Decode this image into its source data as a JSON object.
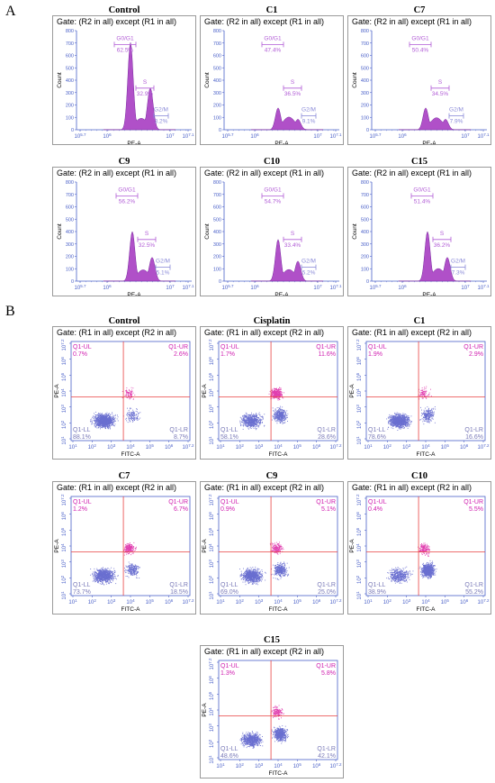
{
  "section_labels": {
    "a": "A",
    "b": "B"
  },
  "histogram": {
    "gate": "Gate: (R2 in all) except (R1 in all)",
    "ylabel": "Count",
    "xlabel": "PE-A",
    "region_labels": [
      "G0/G1",
      "S",
      "G2/M"
    ],
    "yticks": [
      "0",
      "100",
      "200",
      "300",
      "400",
      "500",
      "600",
      "700",
      "800"
    ],
    "xticks": [
      "10^5.7",
      "10^6",
      "10^7",
      "10^7.1"
    ],
    "samples": [
      {
        "name": "Control",
        "g0g1": "62.5%",
        "s": "32.9%",
        "g2m": "3.2%"
      },
      {
        "name": "C1",
        "g0g1": "47.4%",
        "s": "36.5%",
        "g2m": "9.1%"
      },
      {
        "name": "C7",
        "g0g1": "50.4%",
        "s": "34.5%",
        "g2m": "7.9%"
      },
      {
        "name": "C9",
        "g0g1": "56.2%",
        "s": "32.5%",
        "g2m": "5.1%"
      },
      {
        "name": "C10",
        "g0g1": "54.7%",
        "s": "33.4%",
        "g2m": "5.2%"
      },
      {
        "name": "C15",
        "g0g1": "51.4%",
        "s": "36.2%",
        "g2m": "7.3%"
      }
    ]
  },
  "scatter": {
    "gate": "Gate: (R1 in all) except (R2 in all)",
    "ylabel": "PE-A",
    "xlabel": "FITC-A",
    "quadrant_labels": [
      "Q1-UL",
      "Q1-UR",
      "Q1-LL",
      "Q1-LR"
    ],
    "xticks": [
      "10^1",
      "10^2",
      "10^3",
      "10^4",
      "10^5",
      "10^6",
      "10^7.2"
    ],
    "yticks": [
      "10^1",
      "10^2",
      "10^3",
      "10^4",
      "10^5",
      "10^6",
      "10^7.2"
    ],
    "samples": [
      {
        "name": "Control",
        "ul": "0.7%",
        "ur": "2.6%",
        "ll": "88.1%",
        "lr": "8.7%"
      },
      {
        "name": "Cisplatin",
        "ul": "1.7%",
        "ur": "11.6%",
        "ll": "58.1%",
        "lr": "28.6%"
      },
      {
        "name": "C1",
        "ul": "1.9%",
        "ur": "2.9%",
        "ll": "78.6%",
        "lr": "16.6%"
      },
      {
        "name": "C7",
        "ul": "1.2%",
        "ur": "6.7%",
        "ll": "73.7%",
        "lr": "18.5%"
      },
      {
        "name": "C9",
        "ul": "0.9%",
        "ur": "5.1%",
        "ll": "69.0%",
        "lr": "25.0%"
      },
      {
        "name": "C10",
        "ul": "0.4%",
        "ur": "5.5%",
        "ll": "38.9%",
        "lr": "55.2%"
      },
      {
        "name": "C15",
        "ul": "1.3%",
        "ur": "5.8%",
        "ll": "48.6%",
        "lr": "42.1%"
      }
    ]
  },
  "colors": {
    "peak": "#b050c8",
    "peak_dark": "#7a2aa0",
    "region": "#b15cd6",
    "dot_blue": "#6a6fd0",
    "dot_pink": "#e040b0",
    "quad_line": "#e84040",
    "axis": "#4a60c8",
    "quad_text": "#d020b0"
  }
}
